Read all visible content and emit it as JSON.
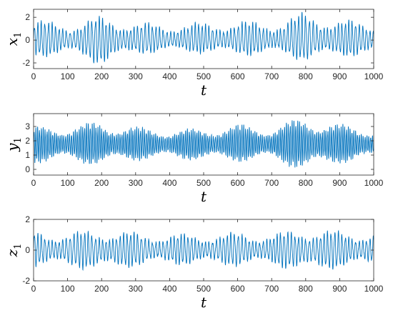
{
  "chart_data": [
    {
      "type": "line",
      "xlabel": "t",
      "ylabel": "x",
      "ylabel_sub": "1",
      "xlim": [
        0,
        1000
      ],
      "ylim": [
        -2.5,
        2.7
      ],
      "x_ticks": [
        0,
        100,
        200,
        300,
        400,
        500,
        600,
        700,
        800,
        900,
        1000
      ],
      "y_ticks": [
        -2,
        0,
        2
      ],
      "color": "#0072BD",
      "series": [
        {
          "center": 0,
          "amplitude": 1.2,
          "period": 10.5,
          "x": [
            0,
            100,
            200,
            300,
            400,
            500,
            600,
            700,
            800,
            900,
            1000
          ],
          "peak_envelope": [
            1.9,
            1.5,
            2.2,
            1.6,
            1.5,
            1.6,
            1.8,
            1.6,
            2.6,
            1.9,
            1.6
          ],
          "trough_envelope": [
            -1.6,
            -1.3,
            -2.3,
            -1.3,
            -1.1,
            -1.2,
            -1.4,
            -1.3,
            -1.9,
            -1.5,
            -1.4
          ]
        }
      ]
    },
    {
      "type": "line",
      "xlabel": "t",
      "ylabel": "y",
      "ylabel_sub": "1",
      "xlim": [
        0,
        1000
      ],
      "ylim": [
        -0.4,
        3.9
      ],
      "x_ticks": [
        0,
        100,
        200,
        300,
        400,
        500,
        600,
        700,
        800,
        900,
        1000
      ],
      "y_ticks": [
        0,
        1,
        2,
        3
      ],
      "color": "#0072BD",
      "series": [
        {
          "center": 1.75,
          "amplitude": 1.1,
          "period": 5.5,
          "x": [
            0,
            100,
            200,
            300,
            400,
            500,
            600,
            700,
            800,
            900,
            1000
          ],
          "peak_envelope": [
            3.0,
            3.1,
            3.4,
            3.0,
            2.8,
            2.9,
            3.2,
            3.0,
            3.8,
            3.2,
            2.9
          ],
          "trough_envelope": [
            0.4,
            0.5,
            0.2,
            0.6,
            0.7,
            0.6,
            0.5,
            0.6,
            -0.2,
            0.4,
            0.6
          ]
        }
      ]
    },
    {
      "type": "line",
      "xlabel": "t",
      "ylabel": "z",
      "ylabel_sub": "1",
      "xlim": [
        0,
        1000
      ],
      "ylim": [
        -2,
        2
      ],
      "x_ticks": [
        0,
        100,
        200,
        300,
        400,
        500,
        600,
        700,
        800,
        900,
        1000
      ],
      "y_ticks": [
        -2,
        0,
        2
      ],
      "color": "#0072BD",
      "series": [
        {
          "center": 0,
          "amplitude": 1.0,
          "period": 10.5,
          "x": [
            0,
            100,
            200,
            300,
            400,
            500,
            600,
            700,
            800,
            900,
            1000
          ],
          "peak_envelope": [
            1.3,
            1.2,
            1.4,
            1.2,
            1.1,
            1.1,
            1.2,
            1.1,
            1.5,
            1.3,
            1.2
          ],
          "trough_envelope": [
            -1.2,
            -1.1,
            -1.5,
            -1.1,
            -1.0,
            -1.0,
            -1.1,
            -1.0,
            -1.6,
            -1.2,
            -1.1
          ]
        }
      ]
    }
  ]
}
